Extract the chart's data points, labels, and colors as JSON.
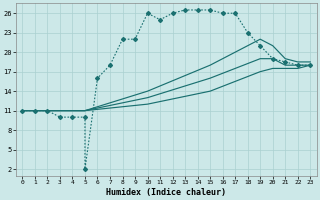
{
  "xlabel": "Humidex (Indice chaleur)",
  "bg_color": "#cce8e8",
  "grid_color": "#aad0d0",
  "line_color": "#1a7070",
  "xlim": [
    -0.5,
    23.5
  ],
  "ylim": [
    1,
    27.5
  ],
  "xticks": [
    0,
    1,
    2,
    3,
    4,
    5,
    6,
    7,
    8,
    9,
    10,
    11,
    12,
    13,
    14,
    15,
    16,
    17,
    18,
    19,
    20,
    21,
    22,
    23
  ],
  "yticks": [
    2,
    5,
    8,
    11,
    14,
    17,
    20,
    23,
    26
  ],
  "curve1_x": [
    0,
    1,
    2,
    3,
    4,
    5,
    5,
    6,
    7,
    8,
    9,
    10,
    11,
    12,
    13,
    14,
    15,
    16,
    17,
    18,
    19,
    20,
    21,
    22,
    23
  ],
  "curve1_y": [
    11,
    11,
    11,
    10,
    10,
    10,
    2,
    16,
    18,
    22,
    22,
    26,
    25,
    26,
    26.5,
    26.5,
    26.5,
    26,
    26,
    23,
    21,
    19,
    18.5,
    18,
    18
  ],
  "curve2_x": [
    0,
    5,
    10,
    15,
    19,
    20,
    21,
    22,
    23
  ],
  "curve2_y": [
    11,
    11,
    14,
    18,
    22,
    21,
    19,
    18.5,
    18.5
  ],
  "curve3_x": [
    0,
    5,
    10,
    15,
    19,
    20,
    21,
    22,
    23
  ],
  "curve3_y": [
    11,
    11,
    13,
    16,
    19,
    19,
    18,
    18,
    18
  ],
  "curve4_x": [
    0,
    5,
    10,
    15,
    19,
    20,
    21,
    22,
    23
  ],
  "curve4_y": [
    11,
    11,
    12,
    14,
    17,
    17.5,
    17.5,
    17.5,
    18
  ]
}
